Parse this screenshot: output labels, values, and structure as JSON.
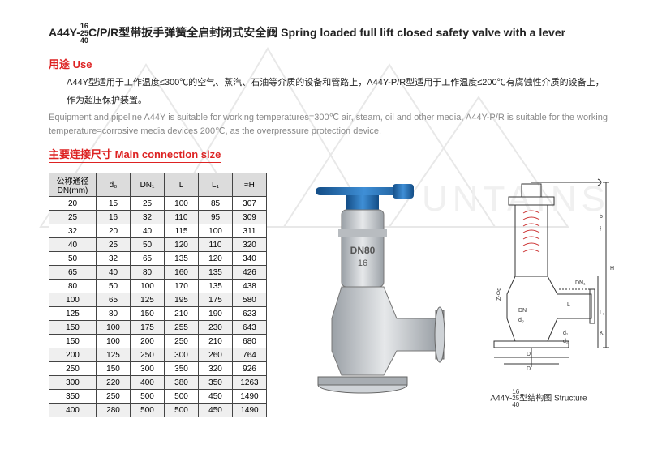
{
  "title": {
    "prefix": "A44Y-",
    "frac_top": "16",
    "frac_mid": "25",
    "frac_bot": "40",
    "cn": "C/P/R型带扳手弹簧全启封闭式安全阀",
    "en": "Spring loaded full lift closed safety valve with a lever"
  },
  "use": {
    "heading": "用途 Use",
    "cn1": "A44Y型适用于工作温度≤300℃的空气、蒸汽、石油等介质的设备和管路上，A44Y-P/R型适用于工作温度≤200℃有腐蚀性介质的设备上，",
    "cn2": "作为超压保护装置。",
    "en": "Equipment and pipeline A44Y is suitable for working temperatures=300℃ air, steam, oil and other media, A44Y-P/R is suitable for the working temperature=corrosive media devices 200℃, as the overpressure protection device."
  },
  "mainconn": {
    "heading": "主要连接尺寸 Main connection size"
  },
  "table": {
    "headers": [
      "公称通径\nDN(mm)",
      "d₀",
      "DN₁",
      "L",
      "L₁",
      "≈H"
    ],
    "rows": [
      [
        "20",
        "15",
        "25",
        "100",
        "85",
        "307"
      ],
      [
        "25",
        "16",
        "32",
        "110",
        "95",
        "309"
      ],
      [
        "32",
        "20",
        "40",
        "115",
        "100",
        "311"
      ],
      [
        "40",
        "25",
        "50",
        "120",
        "110",
        "320"
      ],
      [
        "50",
        "32",
        "65",
        "135",
        "120",
        "340"
      ],
      [
        "65",
        "40",
        "80",
        "160",
        "135",
        "426"
      ],
      [
        "80",
        "50",
        "100",
        "170",
        "135",
        "438"
      ],
      [
        "100",
        "65",
        "125",
        "195",
        "175",
        "580"
      ],
      [
        "125",
        "80",
        "150",
        "210",
        "190",
        "623"
      ],
      [
        "150",
        "100",
        "175",
        "255",
        "230",
        "643"
      ],
      [
        "150",
        "100",
        "200",
        "250",
        "210",
        "680"
      ],
      [
        "200",
        "125",
        "250",
        "300",
        "260",
        "764"
      ],
      [
        "250",
        "150",
        "300",
        "350",
        "320",
        "926"
      ],
      [
        "300",
        "220",
        "400",
        "380",
        "350",
        "1263"
      ],
      [
        "350",
        "250",
        "500",
        "500",
        "450",
        "1490"
      ],
      [
        "400",
        "280",
        "500",
        "500",
        "450",
        "1490"
      ]
    ]
  },
  "caption": {
    "prefix": "A44Y-",
    "frac_top": "16",
    "frac_mid": "25",
    "frac_bot": "40",
    "suffix": "型结构图 Structure"
  },
  "colors": {
    "red": "#d22",
    "valve_blue": "#2a6fb5",
    "valve_body": "#c8ccd0",
    "diagram_stroke": "#333"
  }
}
